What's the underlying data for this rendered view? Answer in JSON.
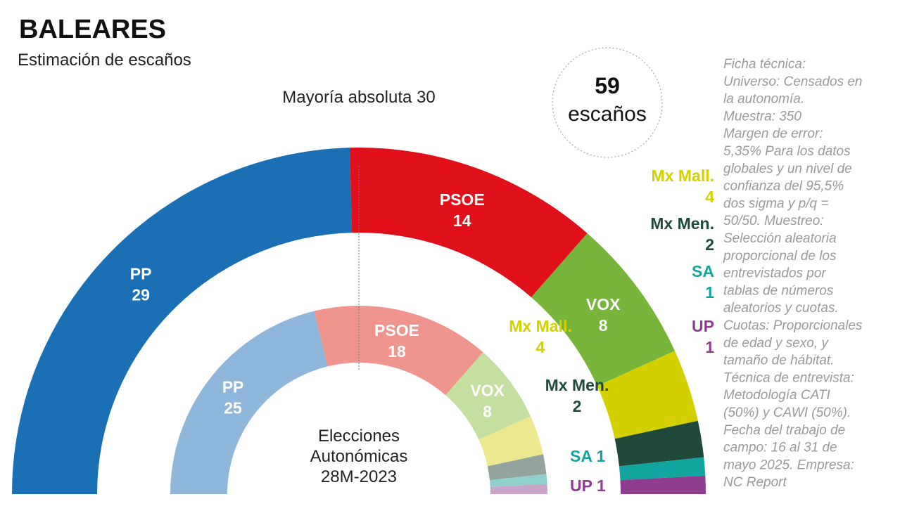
{
  "chart_data": {
    "type": "half-donut",
    "title": "BALEARES",
    "subtitle": "Estimación de escaños",
    "categories": [
      "PP",
      "PSOE",
      "VOX",
      "Mx Mall.",
      "Mx Men.",
      "SA",
      "UP"
    ],
    "rings": [
      {
        "values": [
          29,
          14,
          8,
          4,
          2,
          1,
          1
        ],
        "colors": [
          "#1a6fb5",
          "#e0101b",
          "#77b43a",
          "#d4d000",
          "#1f4a3a",
          "#12a5a0",
          "#8e3d8f"
        ]
      },
      {
        "label": [
          "Elecciones",
          "Autonómicas",
          "28M-2023"
        ],
        "values": [
          25,
          18,
          8,
          4,
          2,
          1,
          1
        ],
        "colors": [
          "#8fb7db",
          "#f0948e",
          "#c4dfa0",
          "#ece890",
          "#93a49d",
          "#8fd0cd",
          "#cba4ca"
        ]
      }
    ],
    "majority": {
      "label": "Mayoría absoluta",
      "value": 30
    },
    "total": 59,
    "total_label": "escaños",
    "notes": [
      "Ficha técnica:",
      "Universo: Censados en",
      "la autonomía.",
      "Muestra: 350",
      "Margen de error:",
      "5,35% Para los datos",
      "globales y un nivel de",
      "confianza del 95,5%",
      "dos sigma y p/q =",
      "50/50. Muestreo:",
      "Selección aleatoria",
      "proporcional de los",
      "entrevistados por",
      "tablas de números",
      "aleatorios y cuotas.",
      "Cuotas: Proporcionales",
      "de edad y sexo, y",
      "tamaño de hábitat.",
      "Técnica de entrevista:",
      "Metodología CATI",
      "(50%) y CAWI (50%).",
      "Fecha del trabajo de",
      "campo: 16 al 31 de",
      "mayo 2025. Empresa:",
      "NC Report"
    ]
  }
}
